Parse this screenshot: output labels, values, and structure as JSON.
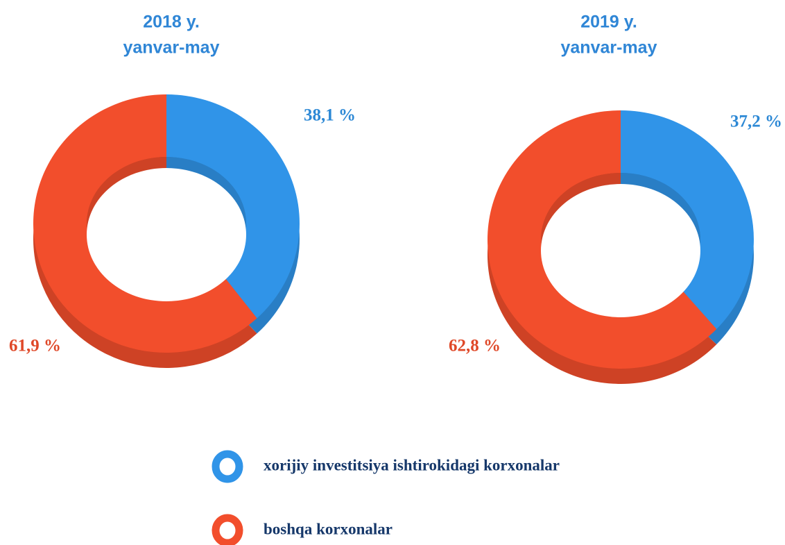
{
  "chart_data": [
    {
      "type": "pie",
      "title": "2018 y.",
      "subtitle": "yanvar-may",
      "values": [
        38.1,
        61.9
      ],
      "value_labels": [
        "38,1 %",
        "61,9 %"
      ]
    },
    {
      "type": "pie",
      "title": "2019 y.",
      "subtitle": "yanvar-may",
      "values": [
        37.2,
        62.8
      ],
      "value_labels": [
        "37,2 %",
        "62,8 %"
      ]
    }
  ],
  "legend": {
    "labels": [
      "xorijiy investitsiya ishtirokidagi korxonalar",
      "boshqa korxonalar"
    ],
    "colors": [
      "#3094e8",
      "#f24e2c"
    ]
  }
}
